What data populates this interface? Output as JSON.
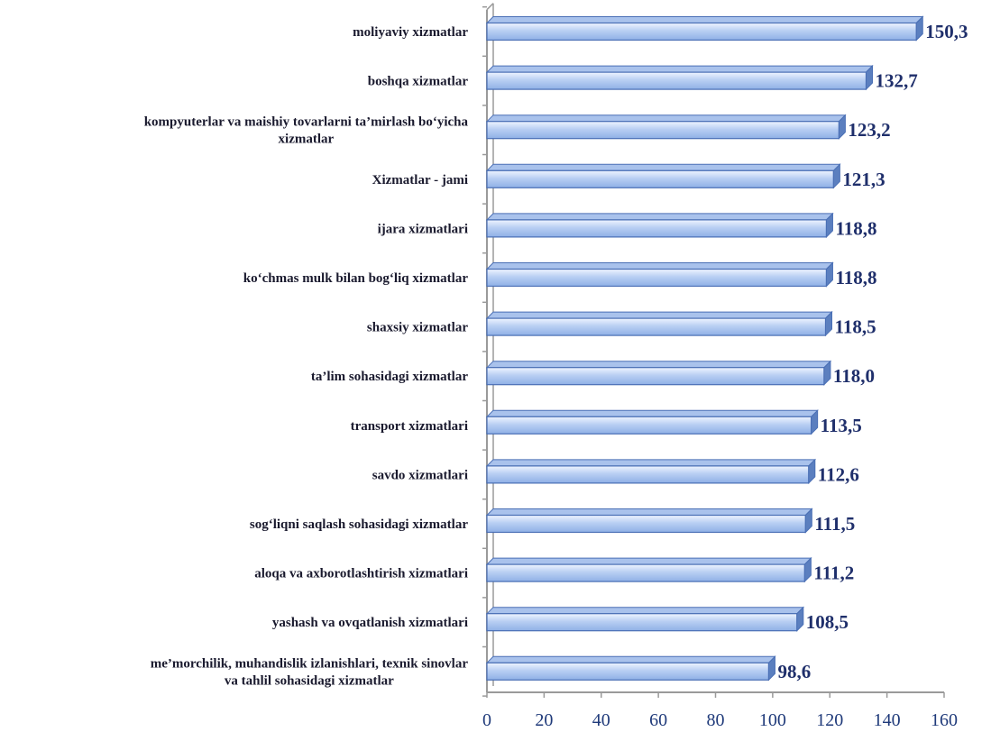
{
  "chart_data": {
    "type": "bar",
    "orientation": "horizontal",
    "categories": [
      "moliyaviy xizmatlar",
      "boshqa xizmatlar",
      "kompyuterlar va maishiy tovarlarni ta’mirlash bo‘yicha xizmatlar",
      "Xizmatlar - jami",
      "ijara xizmatlari",
      "ko‘chmas mulk bilan bog‘liq xizmatlar",
      "shaxsiy xizmatlar",
      "ta’lim sohasidagi xizmatlar",
      "transport xizmatlari",
      "savdo xizmatlari",
      "sog‘liqni saqlash sohasidagi xizmatlar",
      "aloqa va axborotlashtirish xizmatlari",
      "yashash va ovqatlanish xizmatlari",
      "me’morchilik, muhandislik izlanishlari, texnik sinovlar va tahlil sohasidagi xizmatlar"
    ],
    "category_lines": [
      [
        "moliyaviy xizmatlar"
      ],
      [
        "boshqa xizmatlar"
      ],
      [
        "kompyuterlar va maishiy tovarlarni ta’mirlash bo‘yicha",
        "xizmatlar"
      ],
      [
        "Xizmatlar - jami"
      ],
      [
        "ijara xizmatlari"
      ],
      [
        "ko‘chmas mulk bilan bog‘liq xizmatlar"
      ],
      [
        "shaxsiy xizmatlar"
      ],
      [
        "ta’lim sohasidagi xizmatlar"
      ],
      [
        "transport xizmatlari"
      ],
      [
        "savdo xizmatlari"
      ],
      [
        "sog‘liqni saqlash sohasidagi xizmatlar"
      ],
      [
        "aloqa va axborotlashtirish xizmatlari"
      ],
      [
        "yashash va ovqatlanish xizmatlari"
      ],
      [
        "me’morchilik, muhandislik izlanishlari, texnik sinovlar",
        "va tahlil sohasidagi xizmatlar"
      ]
    ],
    "values": [
      150.3,
      132.7,
      123.2,
      121.3,
      118.8,
      118.8,
      118.5,
      118.0,
      113.5,
      112.6,
      111.5,
      111.2,
      108.5,
      98.6
    ],
    "value_labels": [
      "150,3",
      "132,7",
      "123,2",
      "121,3",
      "118,8",
      "118,8",
      "118,5",
      "118,0",
      "113,5",
      "112,6",
      "111,5",
      "111,2",
      "108,5",
      "98,6"
    ],
    "xlim": [
      0,
      160
    ],
    "xticks": [
      0,
      20,
      40,
      60,
      80,
      100,
      120,
      140,
      160
    ],
    "title": "",
    "xlabel": "",
    "ylabel": "",
    "grid": false,
    "style": "3d-bars",
    "colors": {
      "bar_light": "#eef4ff",
      "bar_mid": "#b9cff3",
      "bar_dark": "#8fb0e6",
      "bar_edge": "#4a6fb5",
      "bar_side": "#5b7fbf",
      "bar_top": "#a9c2ec",
      "axis": "#9a9a9a",
      "value_text": "#1f2f6b",
      "tick_text": "#1f3a7a"
    }
  }
}
